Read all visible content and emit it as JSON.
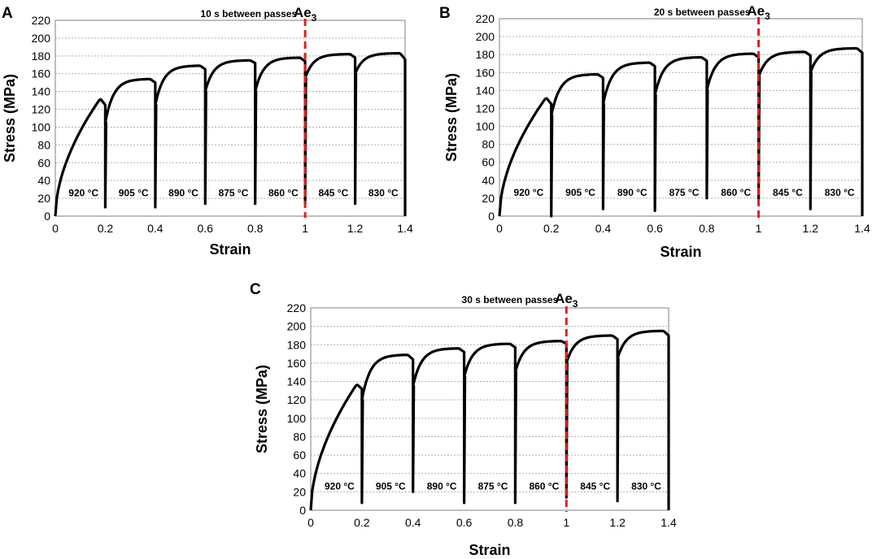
{
  "figure": {
    "description_label": "Three stress-strain panels"
  },
  "colors": {
    "curve": "#000000",
    "ae3_line": "#e0201b",
    "grid": "#b0b0b0",
    "axis": "#808080",
    "text": "#000000"
  },
  "chart_data": [
    {
      "type": "line",
      "panel_label": "A",
      "title": "10 s between passes",
      "xlabel": "Strain",
      "ylabel": "Stress (MPa)",
      "xlim": [
        0,
        1.4
      ],
      "ylim": [
        0,
        220
      ],
      "xticks": [
        0,
        0.2,
        0.4,
        0.6,
        0.8,
        1,
        1.2,
        1.4
      ],
      "xtick_labels": [
        "0",
        "0.2",
        "0.4",
        "0.6",
        "0.8",
        "1",
        "1.2",
        "1.4"
      ],
      "yticks": [
        0,
        20,
        40,
        60,
        80,
        100,
        120,
        140,
        160,
        180,
        200,
        220
      ],
      "ytick_labels": [
        "0",
        "20",
        "40",
        "60",
        "80",
        "100",
        "120",
        "140",
        "160",
        "180",
        "200",
        "220"
      ],
      "grid": true,
      "marker_line": {
        "x": 1.0,
        "label_main": "Ae",
        "label_sub": "3"
      },
      "pass_temperatures": [
        "920 °C",
        "905 °C",
        "890 °C",
        "875 °C",
        "860 °C",
        "845 °C",
        "830 °C"
      ],
      "passes": [
        {
          "start": 0.0,
          "end": 0.2,
          "initial": 0,
          "peak": 132,
          "final": 125,
          "unload_min": 10
        },
        {
          "start": 0.2,
          "end": 0.4,
          "initial": 105,
          "peak": 154,
          "final": 150,
          "unload_min": 10
        },
        {
          "start": 0.4,
          "end": 0.6,
          "initial": 125,
          "peak": 169,
          "final": 165,
          "unload_min": 14
        },
        {
          "start": 0.6,
          "end": 0.8,
          "initial": 140,
          "peak": 175,
          "final": 172,
          "unload_min": 14
        },
        {
          "start": 0.8,
          "end": 1.0,
          "initial": 140,
          "peak": 178,
          "final": 174,
          "unload_min": 14
        },
        {
          "start": 1.0,
          "end": 1.2,
          "initial": 155,
          "peak": 182,
          "final": 178,
          "unload_min": 14
        },
        {
          "start": 1.2,
          "end": 1.4,
          "initial": 160,
          "peak": 183,
          "final": 176,
          "unload_min": 0
        }
      ]
    },
    {
      "type": "line",
      "panel_label": "B",
      "title": "20 s between passes",
      "xlabel": "Strain",
      "ylabel": "Stress (MPa)",
      "xlim": [
        0,
        1.4
      ],
      "ylim": [
        0,
        220
      ],
      "xticks": [
        0,
        0.2,
        0.4,
        0.6,
        0.8,
        1,
        1.2,
        1.4
      ],
      "xtick_labels": [
        "0",
        "0.2",
        "0.4",
        "0.6",
        "0.8",
        "1",
        "1.2",
        "1.4"
      ],
      "yticks": [
        0,
        20,
        40,
        60,
        80,
        100,
        120,
        140,
        160,
        180,
        200,
        220
      ],
      "ytick_labels": [
        "0",
        "20",
        "40",
        "60",
        "80",
        "100",
        "120",
        "140",
        "160",
        "180",
        "200",
        "220"
      ],
      "grid": true,
      "marker_line": {
        "x": 1.0,
        "label_main": "Ae",
        "label_sub": "3"
      },
      "pass_temperatures": [
        "920 °C",
        "905 °C",
        "890 °C",
        "875 °C",
        "860 °C",
        "845 °C",
        "830 °C"
      ],
      "passes": [
        {
          "start": 0.0,
          "end": 0.2,
          "initial": 0,
          "peak": 132,
          "final": 125,
          "unload_min": 0
        },
        {
          "start": 0.2,
          "end": 0.4,
          "initial": 112,
          "peak": 158,
          "final": 154,
          "unload_min": 8
        },
        {
          "start": 0.4,
          "end": 0.6,
          "initial": 125,
          "peak": 171,
          "final": 167,
          "unload_min": 6
        },
        {
          "start": 0.6,
          "end": 0.8,
          "initial": 135,
          "peak": 177,
          "final": 173,
          "unload_min": 20
        },
        {
          "start": 0.8,
          "end": 1.0,
          "initial": 140,
          "peak": 181,
          "final": 177,
          "unload_min": 20
        },
        {
          "start": 1.0,
          "end": 1.2,
          "initial": 155,
          "peak": 183,
          "final": 179,
          "unload_min": 8
        },
        {
          "start": 1.2,
          "end": 1.4,
          "initial": 160,
          "peak": 187,
          "final": 182,
          "unload_min": 0
        }
      ]
    },
    {
      "type": "line",
      "panel_label": "C",
      "title": "30 s between passes",
      "xlabel": "Strain",
      "ylabel": "Stress (MPa)",
      "xlim": [
        0,
        1.4
      ],
      "ylim": [
        0,
        220
      ],
      "xticks": [
        0,
        0.2,
        0.4,
        0.6,
        0.8,
        1,
        1.2,
        1.4
      ],
      "xtick_labels": [
        "0",
        "0.2",
        "0.4",
        "0.6",
        "0.8",
        "1",
        "1.2",
        "1.4"
      ],
      "yticks": [
        0,
        20,
        40,
        60,
        80,
        100,
        120,
        140,
        160,
        180,
        200,
        220
      ],
      "ytick_labels": [
        "0",
        "20",
        "40",
        "60",
        "80",
        "100",
        "120",
        "140",
        "160",
        "180",
        "200",
        "220"
      ],
      "grid": true,
      "marker_line": {
        "x": 1.0,
        "label_main": "Ae",
        "label_sub": "3"
      },
      "pass_temperatures": [
        "920 °C",
        "905 °C",
        "890 °C",
        "875 °C",
        "860 °C",
        "845 °C",
        "830 °C"
      ],
      "passes": [
        {
          "start": 0.0,
          "end": 0.2,
          "initial": 0,
          "peak": 137,
          "final": 132,
          "unload_min": 8
        },
        {
          "start": 0.2,
          "end": 0.4,
          "initial": 120,
          "peak": 169,
          "final": 164,
          "unload_min": 20
        },
        {
          "start": 0.4,
          "end": 0.6,
          "initial": 135,
          "peak": 176,
          "final": 172,
          "unload_min": 8
        },
        {
          "start": 0.6,
          "end": 0.8,
          "initial": 145,
          "peak": 181,
          "final": 177,
          "unload_min": 8
        },
        {
          "start": 0.8,
          "end": 1.0,
          "initial": 150,
          "peak": 184,
          "final": 181,
          "unload_min": 14
        },
        {
          "start": 1.0,
          "end": 1.2,
          "initial": 160,
          "peak": 190,
          "final": 186,
          "unload_min": 10
        },
        {
          "start": 1.2,
          "end": 1.4,
          "initial": 165,
          "peak": 195,
          "final": 190,
          "unload_min": 0
        }
      ]
    }
  ]
}
